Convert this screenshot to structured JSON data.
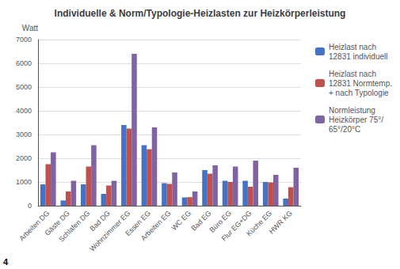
{
  "chart_data": {
    "type": "bar",
    "title": "Individuelle & Norm/Typologie-Heizlasten zur Heizkörperleistung",
    "y_label": "Watt",
    "categories": [
      "Arbeiten DG",
      "Gäste DG",
      "Schlafen DG",
      "Bad DG",
      "Wohnzimmer EG",
      "Essen EG",
      "Arbeiten EG",
      "WC EG",
      "Bad EG",
      "Büro EG",
      "Flur EG+DG",
      "Küche EG",
      "HWR KG"
    ],
    "series": [
      {
        "name": "Heizlast nach\n12831 individuell",
        "color": "#4472C4",
        "values": [
          900,
          220,
          900,
          500,
          3400,
          2550,
          950,
          350,
          1500,
          1050,
          1050,
          1000,
          300
        ]
      },
      {
        "name": "Heizlast nach\n12831 Normtemp.\n+ nach Typologie",
        "color": "#C0504D",
        "values": [
          1750,
          600,
          1650,
          850,
          3250,
          2380,
          920,
          360,
          1350,
          1000,
          800,
          980,
          780
        ]
      },
      {
        "name": "Normleistung\nHeizkörper 75°/\n65°/20°C",
        "color": "#8064A2",
        "values": [
          2250,
          1050,
          2550,
          1050,
          6400,
          3300,
          1400,
          600,
          1700,
          1650,
          1900,
          1300,
          1600
        ]
      }
    ],
    "ylim": [
      0,
      7000
    ],
    "yticks": [
      0,
      1000,
      2000,
      3000,
      4000,
      5000,
      6000,
      7000
    ],
    "grid": true,
    "legend": "right",
    "annotations": [
      "4"
    ]
  }
}
